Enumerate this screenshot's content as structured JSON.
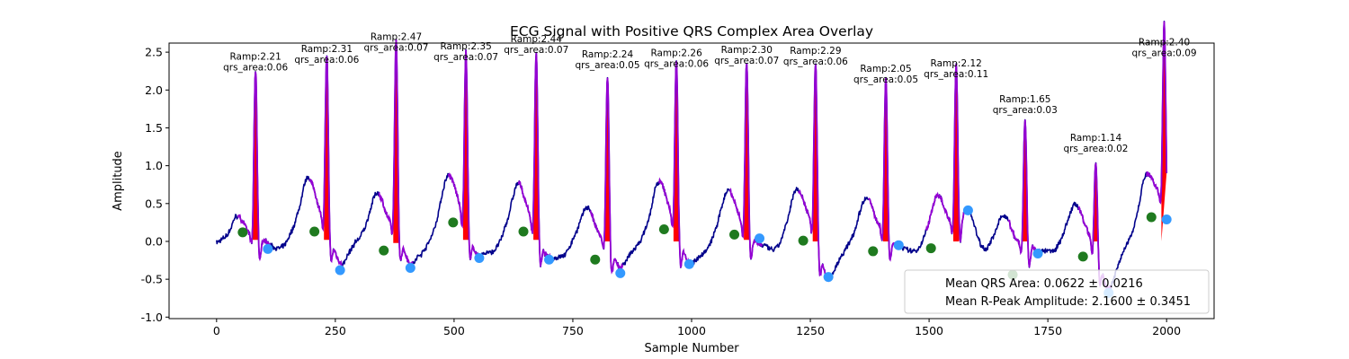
{
  "chart_data": {
    "type": "line",
    "title": "ECG Signal with Positive QRS Complex Area Overlay",
    "xlabel": "Sample Number",
    "ylabel": "Amplitude",
    "xlim": [
      -100,
      2100
    ],
    "ylim": [
      -1.02,
      2.62
    ],
    "x_ticks": [
      0,
      250,
      500,
      750,
      1000,
      1250,
      1500,
      1750,
      2000
    ],
    "y_ticks": [
      -1.0,
      -0.5,
      0.0,
      0.5,
      1.0,
      1.5,
      2.0,
      2.5
    ],
    "grid": false,
    "colors": {
      "signal": "#00008b",
      "qrs_segment": "#9400d3",
      "qrs_area": "#ff0000",
      "onset_marker": "#1f7a1f",
      "offset_marker": "#3399ff"
    },
    "beats": [
      {
        "r": 82,
        "amp": 2.21,
        "area": 0.06,
        "onset": [
          55,
          0.12
        ],
        "offset": [
          108,
          -0.1
        ],
        "base": 0.02
      },
      {
        "r": 232,
        "amp": 2.31,
        "area": 0.06,
        "onset": [
          206,
          0.13
        ],
        "offset": [
          260,
          -0.38
        ],
        "base": 0.02
      },
      {
        "r": 378,
        "amp": 2.47,
        "area": 0.07,
        "onset": [
          352,
          -0.12
        ],
        "offset": [
          408,
          -0.35
        ],
        "base": -0.02
      },
      {
        "r": 525,
        "amp": 2.35,
        "area": 0.07,
        "onset": [
          498,
          0.25
        ],
        "offset": [
          553,
          -0.22
        ],
        "base": 0.02
      },
      {
        "r": 673,
        "amp": 2.44,
        "area": 0.07,
        "onset": [
          646,
          0.13
        ],
        "offset": [
          700,
          -0.24
        ],
        "base": 0.02
      },
      {
        "r": 823,
        "amp": 2.24,
        "area": 0.05,
        "onset": [
          797,
          -0.24
        ],
        "offset": [
          850,
          -0.42
        ],
        "base": 0.0
      },
      {
        "r": 968,
        "amp": 2.26,
        "area": 0.06,
        "onset": [
          942,
          0.16
        ],
        "offset": [
          995,
          -0.3
        ],
        "base": 0.0
      },
      {
        "r": 1116,
        "amp": 2.3,
        "area": 0.07,
        "onset": [
          1090,
          0.09
        ],
        "offset": [
          1143,
          0.04
        ],
        "base": 0.02
      },
      {
        "r": 1261,
        "amp": 2.29,
        "area": 0.06,
        "onset": [
          1235,
          0.01
        ],
        "offset": [
          1288,
          -0.47
        ],
        "base": 0.0
      },
      {
        "r": 1409,
        "amp": 2.05,
        "area": 0.05,
        "onset": [
          1382,
          -0.13
        ],
        "offset": [
          1436,
          -0.05
        ],
        "base": 0.0
      },
      {
        "r": 1557,
        "amp": 2.12,
        "area": 0.11,
        "onset": [
          1504,
          -0.09
        ],
        "offset": [
          1582,
          0.41
        ],
        "base": 0.0
      },
      {
        "r": 1702,
        "amp": 1.65,
        "area": 0.03,
        "onset": [
          1676,
          -0.44
        ],
        "offset": [
          1729,
          -0.16
        ],
        "base": 0.0
      },
      {
        "r": 1851,
        "amp": 1.14,
        "area": 0.02,
        "onset": [
          1824,
          -0.2
        ],
        "offset": [
          1878,
          -0.68
        ],
        "base": 0.0
      },
      {
        "r": 1995,
        "amp": 2.4,
        "area": 0.09,
        "onset": [
          1968,
          0.32
        ],
        "offset": [
          2000,
          0.29
        ],
        "base": 0.0
      }
    ],
    "annotation_template": {
      "ramp_prefix": "Ramp:",
      "area_prefix": "qrs_area:"
    },
    "legend": {
      "placement": "lower-right",
      "entries": [
        "Mean QRS Area: 0.0622 ± 0.0216",
        "Mean R-Peak Amplitude: 2.1600 ± 0.3451"
      ]
    }
  }
}
